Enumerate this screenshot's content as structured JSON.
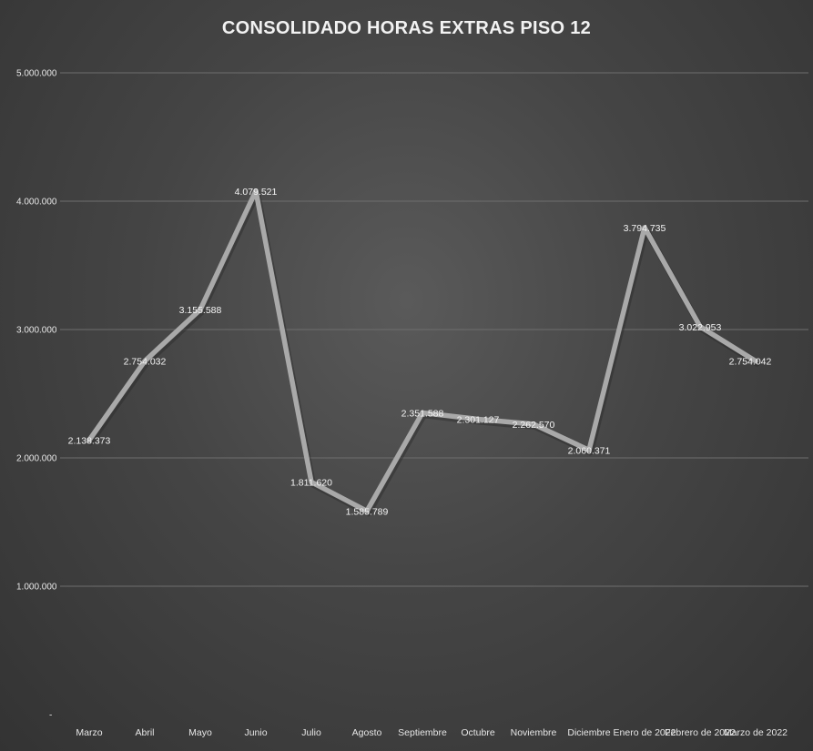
{
  "chart_data": {
    "type": "line",
    "title": "CONSOLIDADO HORAS EXTRAS PISO 12",
    "xlabel": "",
    "ylabel": "",
    "ylim": [
      0,
      5000000
    ],
    "grid": true,
    "legend": "none",
    "y_tick_labels": [
      "-",
      "1.000.000",
      "2.000.000",
      "3.000.000",
      "4.000.000",
      "5.000.000"
    ],
    "y_tick_values": [
      0,
      1000000,
      2000000,
      3000000,
      4000000,
      5000000
    ],
    "categories": [
      "Marzo",
      "Abril",
      "Mayo",
      "Junio",
      "Julio",
      "Agosto",
      "Septiembre",
      "Octubre",
      "Noviembre",
      "Diciembre",
      "Enero de 2022",
      "Febrero de 2022",
      "Marzo de 2022"
    ],
    "values": [
      2138373,
      2754032,
      3155588,
      4079521,
      1811620,
      1585789,
      2351588,
      2301127,
      2262570,
      2060371,
      3794735,
      3022953,
      2754042
    ],
    "data_labels": [
      "2.138.373",
      "2.754.032",
      "3.155.588",
      "4.079.521",
      "1.811.620",
      "1.585.789",
      "2.351.588",
      "2.301.127",
      "2.262.570",
      "2.060.371",
      "3.794.735",
      "3.022.953",
      "2.754.042"
    ],
    "colors": {
      "line": "#a9a9a9",
      "text": "#e6e6e6",
      "grid": "#6e6e6e"
    }
  }
}
